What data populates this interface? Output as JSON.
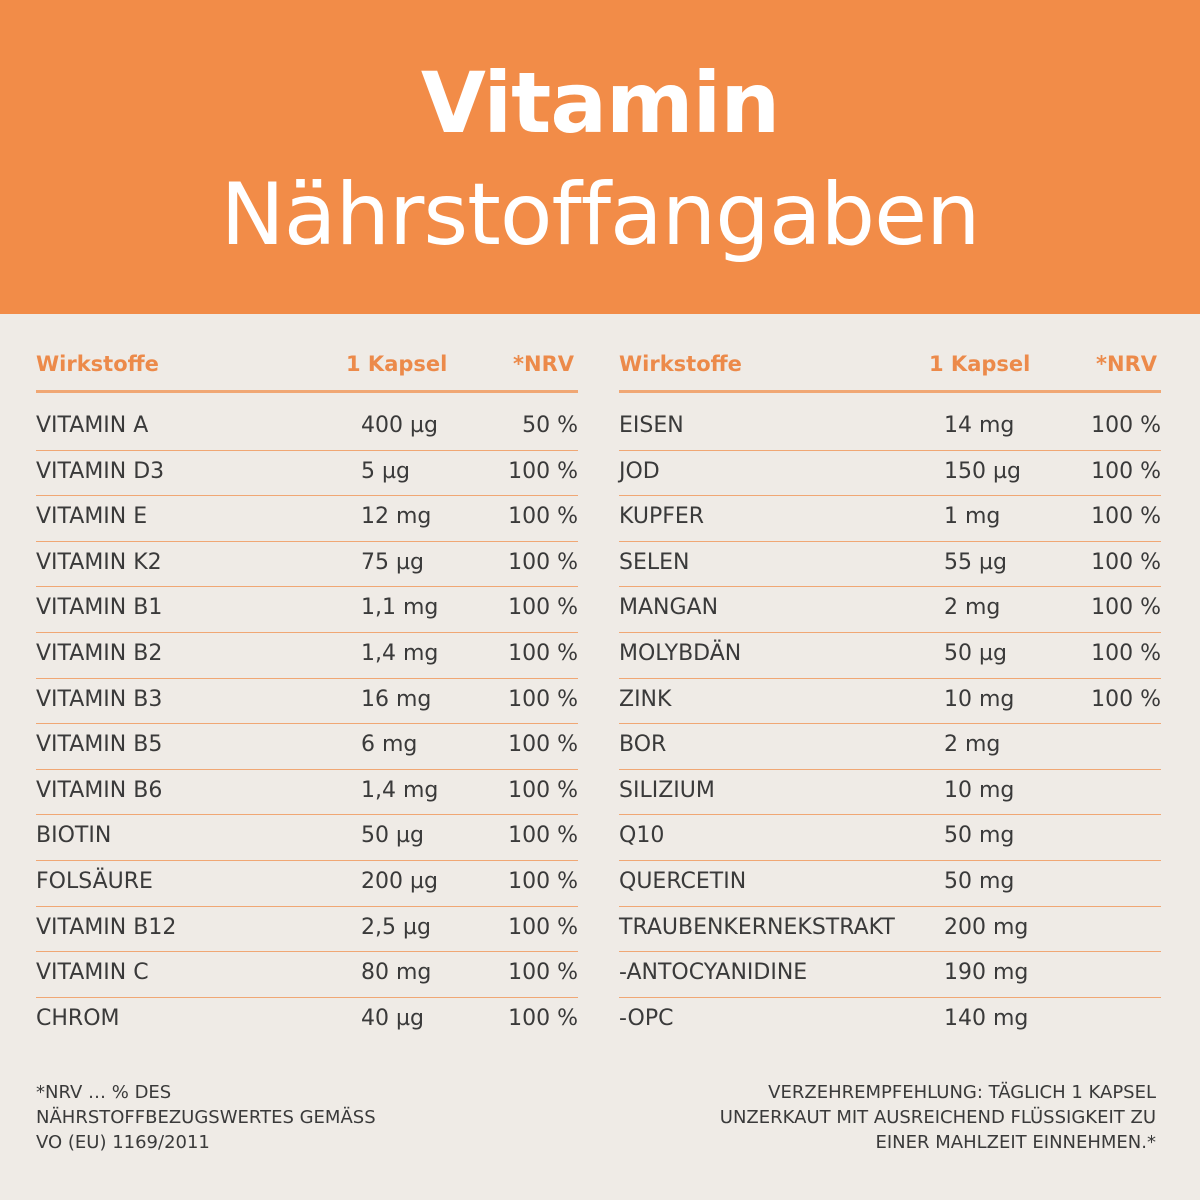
{
  "header": {
    "title": "Vitamin",
    "subtitle": "Nährstoffangaben",
    "background_color": "#f28c48"
  },
  "columns": {
    "name": "Wirkstoffe",
    "amount": "1 Kapsel",
    "nrv": "*NRV"
  },
  "left_rows": [
    {
      "name": "VITAMIN A",
      "amount": "400 µg",
      "nrv": "50 %"
    },
    {
      "name": "VITAMIN D3",
      "amount": "5 µg",
      "nrv": "100 %"
    },
    {
      "name": "VITAMIN E",
      "amount": "12 mg",
      "nrv": "100 %"
    },
    {
      "name": "VITAMIN K2",
      "amount": "75 µg",
      "nrv": "100 %"
    },
    {
      "name": "VITAMIN B1",
      "amount": "1,1 mg",
      "nrv": "100 %"
    },
    {
      "name": "VITAMIN B2",
      "amount": "1,4 mg",
      "nrv": "100 %"
    },
    {
      "name": "VITAMIN B3",
      "amount": "16 mg",
      "nrv": "100 %"
    },
    {
      "name": "VITAMIN B5",
      "amount": "6 mg",
      "nrv": "100 %"
    },
    {
      "name": "VITAMIN B6",
      "amount": "1,4 mg",
      "nrv": "100 %"
    },
    {
      "name": "BIOTIN",
      "amount": "50 µg",
      "nrv": "100 %"
    },
    {
      "name": "FOLSÄURE",
      "amount": "200 µg",
      "nrv": "100 %"
    },
    {
      "name": "VITAMIN B12",
      "amount": "2,5 µg",
      "nrv": "100 %"
    },
    {
      "name": "VITAMIN C",
      "amount": "80 mg",
      "nrv": "100 %"
    },
    {
      "name": "CHROM",
      "amount": "40 µg",
      "nrv": "100 %"
    }
  ],
  "right_rows": [
    {
      "name": "EISEN",
      "amount": "14 mg",
      "nrv": "100 %"
    },
    {
      "name": "JOD",
      "amount": "150 µg",
      "nrv": "100 %"
    },
    {
      "name": "KUPFER",
      "amount": "1 mg",
      "nrv": "100 %"
    },
    {
      "name": "SELEN",
      "amount": "55 µg",
      "nrv": "100 %"
    },
    {
      "name": "MANGAN",
      "amount": "2 mg",
      "nrv": "100 %"
    },
    {
      "name": "MOLYBDÄN",
      "amount": "50 µg",
      "nrv": "100 %"
    },
    {
      "name": "ZINK",
      "amount": "10 mg",
      "nrv": "100 %"
    },
    {
      "name": "BOR",
      "amount": "2 mg",
      "nrv": ""
    },
    {
      "name": "SILIZIUM",
      "amount": "10 mg",
      "nrv": ""
    },
    {
      "name": "Q10",
      "amount": "50 mg",
      "nrv": ""
    },
    {
      "name": "QUERCETIN",
      "amount": "50 mg",
      "nrv": ""
    },
    {
      "name": "TRAUBENKERNEKSTRAKT",
      "amount": "200 mg",
      "nrv": ""
    },
    {
      "name": "-ANTOCYANIDINE",
      "amount": "190 mg",
      "nrv": ""
    },
    {
      "name": "-OPC",
      "amount": "140 mg",
      "nrv": ""
    }
  ],
  "footer": {
    "left_lines": [
      "*NRV … % DES",
      "NÄHRSTOFFBEZUGSWERTES GEMÄSS",
      "VO (EU) 1169/2011"
    ],
    "right_lines": [
      "VERZEHREMPFEHLUNG: TÄGLICH 1 KAPSEL",
      "UNZERKAUT MIT AUSREICHEND FLÜSSIGKEIT ZU",
      "EINER MAHLZEIT EINNEHMEN.*"
    ]
  }
}
